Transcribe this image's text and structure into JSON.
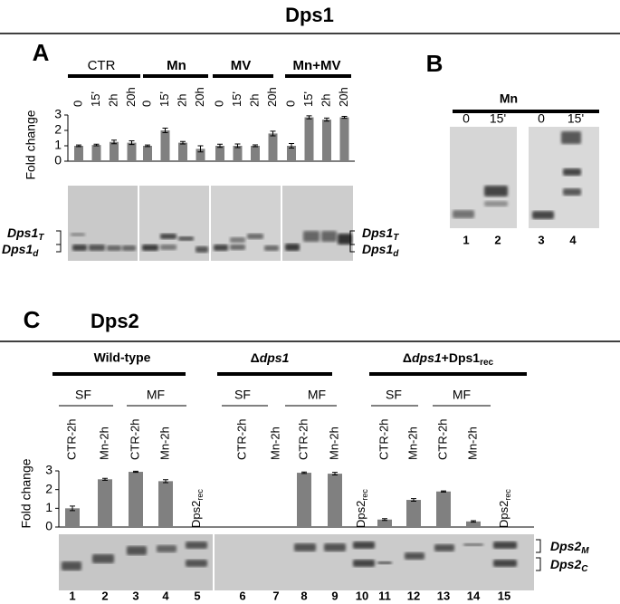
{
  "title": "Dps1",
  "panel_a": {
    "label": "A",
    "groups": [
      "CTR",
      "Mn",
      "MV",
      "Mn+MV"
    ],
    "bands_left": [
      {
        "main": "Dps1",
        "sub": "T"
      },
      {
        "main": "Dps1",
        "sub": "d"
      }
    ],
    "bands_right": [
      {
        "main": "Dps1",
        "sub": "T"
      },
      {
        "main": "Dps1",
        "sub": "d"
      }
    ]
  },
  "panel_b": {
    "label": "B",
    "group": "Mn",
    "times": [
      "0",
      "15'",
      "0",
      "15'"
    ],
    "lanes": [
      "1",
      "2",
      "3",
      "4"
    ]
  },
  "panel_c": {
    "label": "C",
    "title": "Dps2",
    "groups": [
      [
        "Wild-type"
      ],
      [
        "Δ",
        "dps1"
      ],
      [
        "Δ",
        "dps1",
        "+Dps1",
        "rec"
      ]
    ],
    "subgroups": [
      "SF",
      "MF",
      "SF",
      "MF",
      "SF",
      "MF"
    ],
    "rec_labels": [
      {
        "main": "Dps2",
        "sub": "rec"
      },
      {
        "main": "Dps2",
        "sub": "rec"
      },
      {
        "main": "Dps2",
        "sub": "rec"
      }
    ],
    "lanes": [
      "1",
      "2",
      "3",
      "4",
      "5",
      "6",
      "7",
      "8",
      "9",
      "10",
      "11",
      "12",
      "13",
      "14",
      "15"
    ],
    "bands": [
      {
        "main": "Dps2",
        "sub": "M"
      },
      {
        "main": "Dps2",
        "sub": "C"
      }
    ]
  },
  "chart_data": [
    {
      "type": "bar",
      "ylabel": "Fold change",
      "categories": [
        "0",
        "15'",
        "2h",
        "20h",
        "0",
        "15'",
        "2h",
        "20h",
        "0",
        "15'",
        "2h",
        "20h",
        "0",
        "15'",
        "2h",
        "20h"
      ],
      "values": [
        1,
        1.05,
        1.25,
        1.2,
        1,
        2,
        1.2,
        0.8,
        1,
        1,
        1,
        1.8,
        1,
        2.85,
        2.7,
        2.85
      ],
      "errors": [
        0.05,
        0.05,
        0.12,
        0.12,
        0.05,
        0.15,
        0.08,
        0.2,
        0.1,
        0.12,
        0.06,
        0.15,
        0.15,
        0.1,
        0.1,
        0.06
      ],
      "color": "#808080",
      "ylim": [
        0,
        3
      ],
      "yticks": [
        0,
        1,
        2,
        3
      ]
    },
    {
      "type": "bar",
      "ylabel": "Fold change",
      "categories": [
        "CTR-2h",
        "Mn-2h",
        "CTR-2h",
        "Mn-2h",
        null,
        "CTR-2h",
        "Mn-2h",
        "CTR-2h",
        "Mn-2h",
        null,
        "CTR-2h",
        "Mn-2h",
        "CTR-2h",
        "Mn-2h",
        null
      ],
      "values": [
        1,
        2.55,
        2.95,
        2.45,
        null,
        0,
        0,
        2.9,
        2.85,
        null,
        0.4,
        1.45,
        1.9,
        0.3,
        null
      ],
      "errors": [
        0.12,
        0.05,
        0.03,
        0.08,
        null,
        null,
        null,
        0.04,
        0.07,
        null,
        0.05,
        0.07,
        0.03,
        0.04,
        null
      ],
      "color": "#808080",
      "ylim": [
        0,
        3
      ],
      "yticks": [
        0,
        1,
        2,
        3
      ]
    }
  ]
}
